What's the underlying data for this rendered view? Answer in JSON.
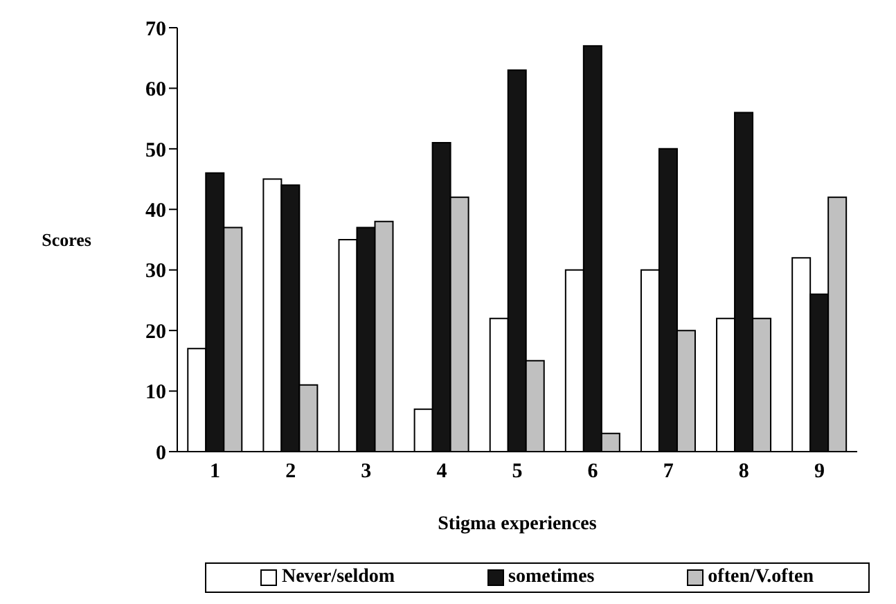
{
  "chart_data": {
    "type": "bar",
    "xlabel": "Stigma experiences",
    "ylabel": "Scores",
    "categories": [
      "1",
      "2",
      "3",
      "4",
      "5",
      "6",
      "7",
      "8",
      "9"
    ],
    "series": [
      {
        "name": "Never/seldom",
        "color": "#ffffff",
        "values": [
          17,
          45,
          35,
          7,
          22,
          30,
          30,
          22,
          32
        ]
      },
      {
        "name": "sometimes",
        "color": "#141414",
        "values": [
          46,
          44,
          37,
          51,
          63,
          67,
          50,
          56,
          26
        ]
      },
      {
        "name": "often/V.often",
        "color": "#c0c0c0",
        "values": [
          37,
          11,
          38,
          42,
          15,
          3,
          20,
          22,
          42
        ]
      }
    ],
    "ylim": [
      0,
      70
    ],
    "yticks": [
      0,
      10,
      20,
      30,
      40,
      50,
      60,
      70
    ],
    "grid": false,
    "legend": "bottom"
  }
}
